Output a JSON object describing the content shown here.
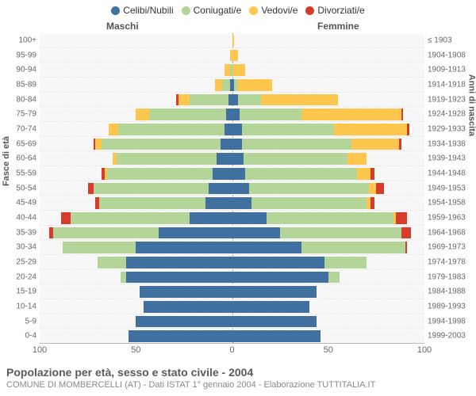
{
  "type": "population-pyramid",
  "legend": [
    {
      "label": "Celibi/Nubili",
      "color": "#3f709f"
    },
    {
      "label": "Coniugati/e",
      "color": "#b3d698"
    },
    {
      "label": "Vedovi/e",
      "color": "#ffc64d"
    },
    {
      "label": "Divorziati/e",
      "color": "#d73c2a"
    }
  ],
  "gender": {
    "male": "Maschi",
    "female": "Femmine"
  },
  "axis": {
    "left_title": "Fasce di età",
    "right_title": "Anni di nascita",
    "x_ticks": [
      100,
      50,
      0,
      50,
      100
    ],
    "x_max": 100
  },
  "colors": {
    "background_plot": "#f7f7f7",
    "grid_dash": "#e8e8e8",
    "centerline": "#888888"
  },
  "title": "Popolazione per età, sesso e stato civile - 2004",
  "subtitle": "COMUNE DI MOMBERCELLI (AT) - Dati ISTAT 1° gennaio 2004 - Elaborazione TUTTITALIA.IT",
  "rows": [
    {
      "age": "100+",
      "birth": "≤ 1903",
      "m": [
        0,
        0,
        0,
        0
      ],
      "f": [
        0,
        0,
        1,
        0
      ]
    },
    {
      "age": "95-99",
      "birth": "1904-1908",
      "m": [
        0,
        0,
        1,
        0
      ],
      "f": [
        0,
        0,
        3,
        0
      ]
    },
    {
      "age": "90-94",
      "birth": "1909-1913",
      "m": [
        0,
        1,
        3,
        0
      ],
      "f": [
        0,
        0,
        7,
        0
      ]
    },
    {
      "age": "85-89",
      "birth": "1914-1918",
      "m": [
        1,
        4,
        4,
        0
      ],
      "f": [
        1,
        2,
        18,
        0
      ]
    },
    {
      "age": "80-84",
      "birth": "1919-1923",
      "m": [
        2,
        20,
        6,
        1
      ],
      "f": [
        3,
        12,
        40,
        0
      ]
    },
    {
      "age": "75-79",
      "birth": "1924-1928",
      "m": [
        3,
        40,
        7,
        0
      ],
      "f": [
        4,
        32,
        52,
        1
      ]
    },
    {
      "age": "70-74",
      "birth": "1929-1933",
      "m": [
        4,
        55,
        5,
        0
      ],
      "f": [
        5,
        48,
        38,
        1
      ]
    },
    {
      "age": "65-69",
      "birth": "1934-1938",
      "m": [
        6,
        62,
        3,
        1
      ],
      "f": [
        5,
        57,
        25,
        1
      ]
    },
    {
      "age": "60-64",
      "birth": "1939-1943",
      "m": [
        8,
        52,
        2,
        0
      ],
      "f": [
        6,
        54,
        10,
        0
      ]
    },
    {
      "age": "55-59",
      "birth": "1944-1948",
      "m": [
        10,
        55,
        1,
        2
      ],
      "f": [
        7,
        58,
        7,
        2
      ]
    },
    {
      "age": "50-54",
      "birth": "1949-1953",
      "m": [
        12,
        60,
        0,
        3
      ],
      "f": [
        9,
        62,
        4,
        4
      ]
    },
    {
      "age": "45-49",
      "birth": "1954-1958",
      "m": [
        14,
        55,
        0,
        2
      ],
      "f": [
        10,
        60,
        2,
        2
      ]
    },
    {
      "age": "40-44",
      "birth": "1959-1963",
      "m": [
        22,
        62,
        0,
        5
      ],
      "f": [
        18,
        66,
        1,
        6
      ]
    },
    {
      "age": "35-39",
      "birth": "1964-1968",
      "m": [
        38,
        55,
        0,
        2
      ],
      "f": [
        25,
        63,
        0,
        5
      ]
    },
    {
      "age": "30-34",
      "birth": "1969-1973",
      "m": [
        50,
        38,
        0,
        0
      ],
      "f": [
        36,
        54,
        0,
        1
      ]
    },
    {
      "age": "25-29",
      "birth": "1974-1978",
      "m": [
        55,
        15,
        0,
        0
      ],
      "f": [
        48,
        22,
        0,
        0
      ]
    },
    {
      "age": "20-24",
      "birth": "1979-1983",
      "m": [
        55,
        3,
        0,
        0
      ],
      "f": [
        50,
        6,
        0,
        0
      ]
    },
    {
      "age": "15-19",
      "birth": "1984-1988",
      "m": [
        48,
        0,
        0,
        0
      ],
      "f": [
        44,
        0,
        0,
        0
      ]
    },
    {
      "age": "10-14",
      "birth": "1989-1993",
      "m": [
        46,
        0,
        0,
        0
      ],
      "f": [
        40,
        0,
        0,
        0
      ]
    },
    {
      "age": "5-9",
      "birth": "1994-1998",
      "m": [
        50,
        0,
        0,
        0
      ],
      "f": [
        44,
        0,
        0,
        0
      ]
    },
    {
      "age": "0-4",
      "birth": "1999-2003",
      "m": [
        54,
        0,
        0,
        0
      ],
      "f": [
        46,
        0,
        0,
        0
      ]
    }
  ]
}
